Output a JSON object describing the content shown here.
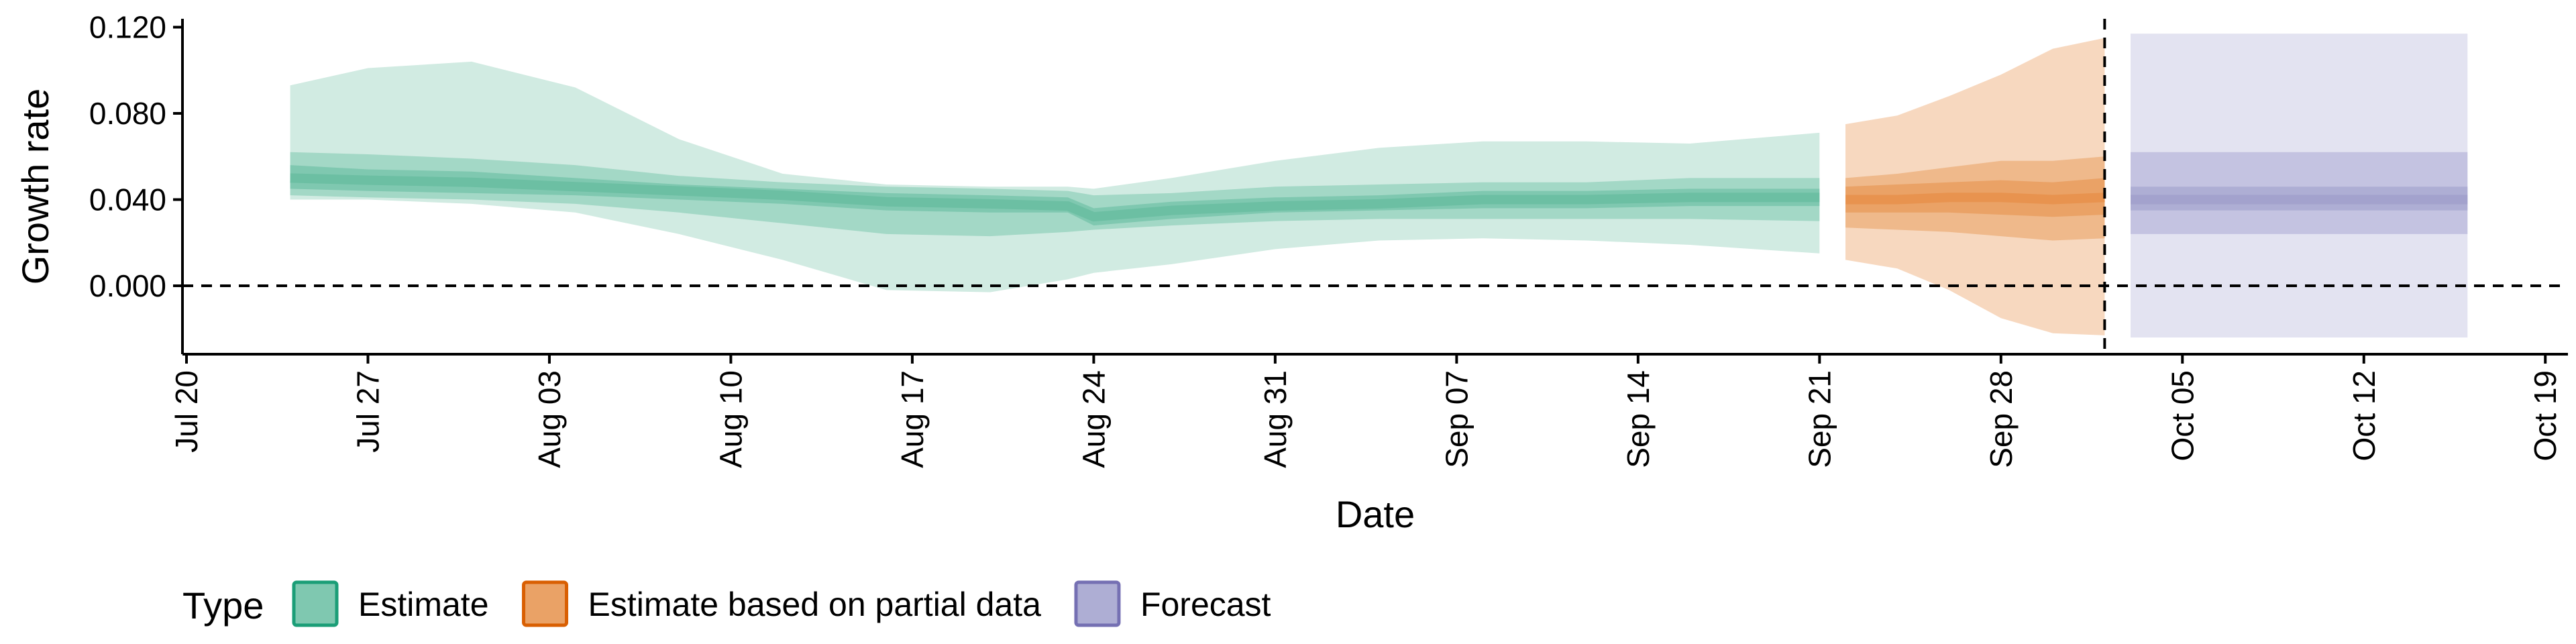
{
  "chart_data": {
    "type": "area",
    "xlabel": "Date",
    "ylabel": "Growth rate",
    "ylim": [
      -0.03,
      0.12
    ],
    "xlim": [
      "2020-07-20",
      "2020-10-20"
    ],
    "y_ticks": [
      {
        "value": 0.0,
        "label": "0.000"
      },
      {
        "value": 0.04,
        "label": "0.040"
      },
      {
        "value": 0.08,
        "label": "0.080"
      },
      {
        "value": 0.12,
        "label": "0.120"
      }
    ],
    "x_ticks": [
      {
        "date": "2020-07-20",
        "label": "Jul 20"
      },
      {
        "date": "2020-07-27",
        "label": "Jul 27"
      },
      {
        "date": "2020-08-03",
        "label": "Aug 03"
      },
      {
        "date": "2020-08-10",
        "label": "Aug 10"
      },
      {
        "date": "2020-08-17",
        "label": "Aug 17"
      },
      {
        "date": "2020-08-24",
        "label": "Aug 24"
      },
      {
        "date": "2020-08-31",
        "label": "Aug 31"
      },
      {
        "date": "2020-09-07",
        "label": "Sep 07"
      },
      {
        "date": "2020-09-14",
        "label": "Sep 14"
      },
      {
        "date": "2020-09-21",
        "label": "Sep 21"
      },
      {
        "date": "2020-09-28",
        "label": "Sep 28"
      },
      {
        "date": "2020-10-05",
        "label": "Oct 05"
      },
      {
        "date": "2020-10-12",
        "label": "Oct 12"
      },
      {
        "date": "2020-10-19",
        "label": "Oct 19"
      }
    ],
    "reference_lines": {
      "horizontal_y": 0.0,
      "vertical_date": "2020-10-02",
      "style": "dashed"
    },
    "legend": {
      "title": "Type",
      "position": "bottom",
      "entries": [
        {
          "name": "Estimate",
          "fill": "#7fc8b0",
          "border": "#1b9e77"
        },
        {
          "name": "Estimate based on partial data",
          "fill": "#eaa266",
          "border": "#d95f02"
        },
        {
          "name": "Forecast",
          "fill": "#aeaed4",
          "border": "#7570b3"
        }
      ]
    },
    "series": [
      {
        "name": "Estimate",
        "colors": {
          "outer": "#d1ebe2",
          "mid": "#a3d8c6",
          "inner": "#7fc8b0",
          "median": "#6cbfa3"
        },
        "points": [
          {
            "date": "2020-07-24",
            "median": 0.05,
            "lo50": 0.045,
            "hi50": 0.056,
            "lo90": 0.042,
            "hi90": 0.062,
            "lo95": 0.04,
            "hi95": 0.093
          },
          {
            "date": "2020-07-27",
            "median": 0.049,
            "lo50": 0.044,
            "hi50": 0.054,
            "lo90": 0.041,
            "hi90": 0.061,
            "lo95": 0.04,
            "hi95": 0.101
          },
          {
            "date": "2020-07-31",
            "median": 0.048,
            "lo50": 0.043,
            "hi50": 0.053,
            "lo90": 0.04,
            "hi90": 0.059,
            "lo95": 0.038,
            "hi95": 0.104
          },
          {
            "date": "2020-08-04",
            "median": 0.046,
            "lo50": 0.042,
            "hi50": 0.05,
            "lo90": 0.038,
            "hi90": 0.056,
            "lo95": 0.034,
            "hi95": 0.092
          },
          {
            "date": "2020-08-08",
            "median": 0.044,
            "lo50": 0.04,
            "hi50": 0.047,
            "lo90": 0.034,
            "hi90": 0.051,
            "lo95": 0.024,
            "hi95": 0.068
          },
          {
            "date": "2020-08-12",
            "median": 0.042,
            "lo50": 0.038,
            "hi50": 0.045,
            "lo90": 0.029,
            "hi90": 0.048,
            "lo95": 0.012,
            "hi95": 0.052
          },
          {
            "date": "2020-08-16",
            "median": 0.039,
            "lo50": 0.035,
            "hi50": 0.043,
            "lo90": 0.024,
            "hi90": 0.046,
            "lo95": -0.002,
            "hi95": 0.047
          },
          {
            "date": "2020-08-20",
            "median": 0.038,
            "lo50": 0.034,
            "hi50": 0.042,
            "lo90": 0.023,
            "hi90": 0.045,
            "lo95": -0.003,
            "hi95": 0.046
          },
          {
            "date": "2020-08-23",
            "median": 0.037,
            "lo50": 0.034,
            "hi50": 0.041,
            "lo90": 0.025,
            "hi90": 0.044,
            "lo95": 0.003,
            "hi95": 0.046
          },
          {
            "date": "2020-08-24",
            "median": 0.032,
            "lo50": 0.028,
            "hi50": 0.036,
            "lo90": 0.026,
            "hi90": 0.042,
            "lo95": 0.006,
            "hi95": 0.045
          },
          {
            "date": "2020-08-27",
            "median": 0.035,
            "lo50": 0.031,
            "hi50": 0.039,
            "lo90": 0.028,
            "hi90": 0.043,
            "lo95": 0.01,
            "hi95": 0.05
          },
          {
            "date": "2020-08-31",
            "median": 0.037,
            "lo50": 0.034,
            "hi50": 0.041,
            "lo90": 0.03,
            "hi90": 0.046,
            "lo95": 0.017,
            "hi95": 0.058
          },
          {
            "date": "2020-09-04",
            "median": 0.038,
            "lo50": 0.035,
            "hi50": 0.042,
            "lo90": 0.031,
            "hi90": 0.047,
            "lo95": 0.021,
            "hi95": 0.064
          },
          {
            "date": "2020-09-08",
            "median": 0.04,
            "lo50": 0.036,
            "hi50": 0.044,
            "lo90": 0.031,
            "hi90": 0.048,
            "lo95": 0.022,
            "hi95": 0.067
          },
          {
            "date": "2020-09-12",
            "median": 0.04,
            "lo50": 0.036,
            "hi50": 0.044,
            "lo90": 0.031,
            "hi90": 0.048,
            "lo95": 0.021,
            "hi95": 0.067
          },
          {
            "date": "2020-09-16",
            "median": 0.041,
            "lo50": 0.037,
            "hi50": 0.045,
            "lo90": 0.031,
            "hi90": 0.05,
            "lo95": 0.019,
            "hi95": 0.066
          },
          {
            "date": "2020-09-21",
            "median": 0.041,
            "lo50": 0.037,
            "hi50": 0.045,
            "lo90": 0.03,
            "hi90": 0.05,
            "lo95": 0.015,
            "hi95": 0.071
          }
        ]
      },
      {
        "name": "Estimate based on partial data",
        "colors": {
          "outer": "#f7d8bf",
          "mid": "#efb98b",
          "inner": "#eaa266",
          "median": "#e8934f"
        },
        "points": [
          {
            "date": "2020-09-22",
            "median": 0.04,
            "lo50": 0.034,
            "hi50": 0.046,
            "lo90": 0.027,
            "hi90": 0.05,
            "lo95": 0.012,
            "hi95": 0.075
          },
          {
            "date": "2020-09-24",
            "median": 0.04,
            "lo50": 0.034,
            "hi50": 0.047,
            "lo90": 0.026,
            "hi90": 0.052,
            "lo95": 0.008,
            "hi95": 0.079
          },
          {
            "date": "2020-09-26",
            "median": 0.041,
            "lo50": 0.034,
            "hi50": 0.048,
            "lo90": 0.025,
            "hi90": 0.055,
            "lo95": -0.002,
            "hi95": 0.088
          },
          {
            "date": "2020-09-28",
            "median": 0.041,
            "lo50": 0.033,
            "hi50": 0.049,
            "lo90": 0.023,
            "hi90": 0.058,
            "lo95": -0.015,
            "hi95": 0.098
          },
          {
            "date": "2020-09-30",
            "median": 0.04,
            "lo50": 0.032,
            "hi50": 0.048,
            "lo90": 0.021,
            "hi90": 0.058,
            "lo95": -0.022,
            "hi95": 0.11
          },
          {
            "date": "2020-10-02",
            "median": 0.041,
            "lo50": 0.033,
            "hi50": 0.05,
            "lo90": 0.022,
            "hi90": 0.06,
            "lo95": -0.023,
            "hi95": 0.115
          }
        ]
      },
      {
        "name": "Forecast",
        "colors": {
          "outer": "#e3e3f1",
          "mid": "#c4c3e1",
          "inner": "#aeaed4",
          "median": "#a3a2cd"
        },
        "points": [
          {
            "date": "2020-10-03",
            "median": 0.04,
            "lo50": 0.035,
            "hi50": 0.046,
            "lo90": 0.024,
            "hi90": 0.062,
            "lo95": -0.024,
            "hi95": 0.117
          },
          {
            "date": "2020-10-16",
            "median": 0.04,
            "lo50": 0.035,
            "hi50": 0.046,
            "lo90": 0.024,
            "hi90": 0.062,
            "lo95": -0.024,
            "hi95": 0.117
          }
        ]
      }
    ]
  }
}
